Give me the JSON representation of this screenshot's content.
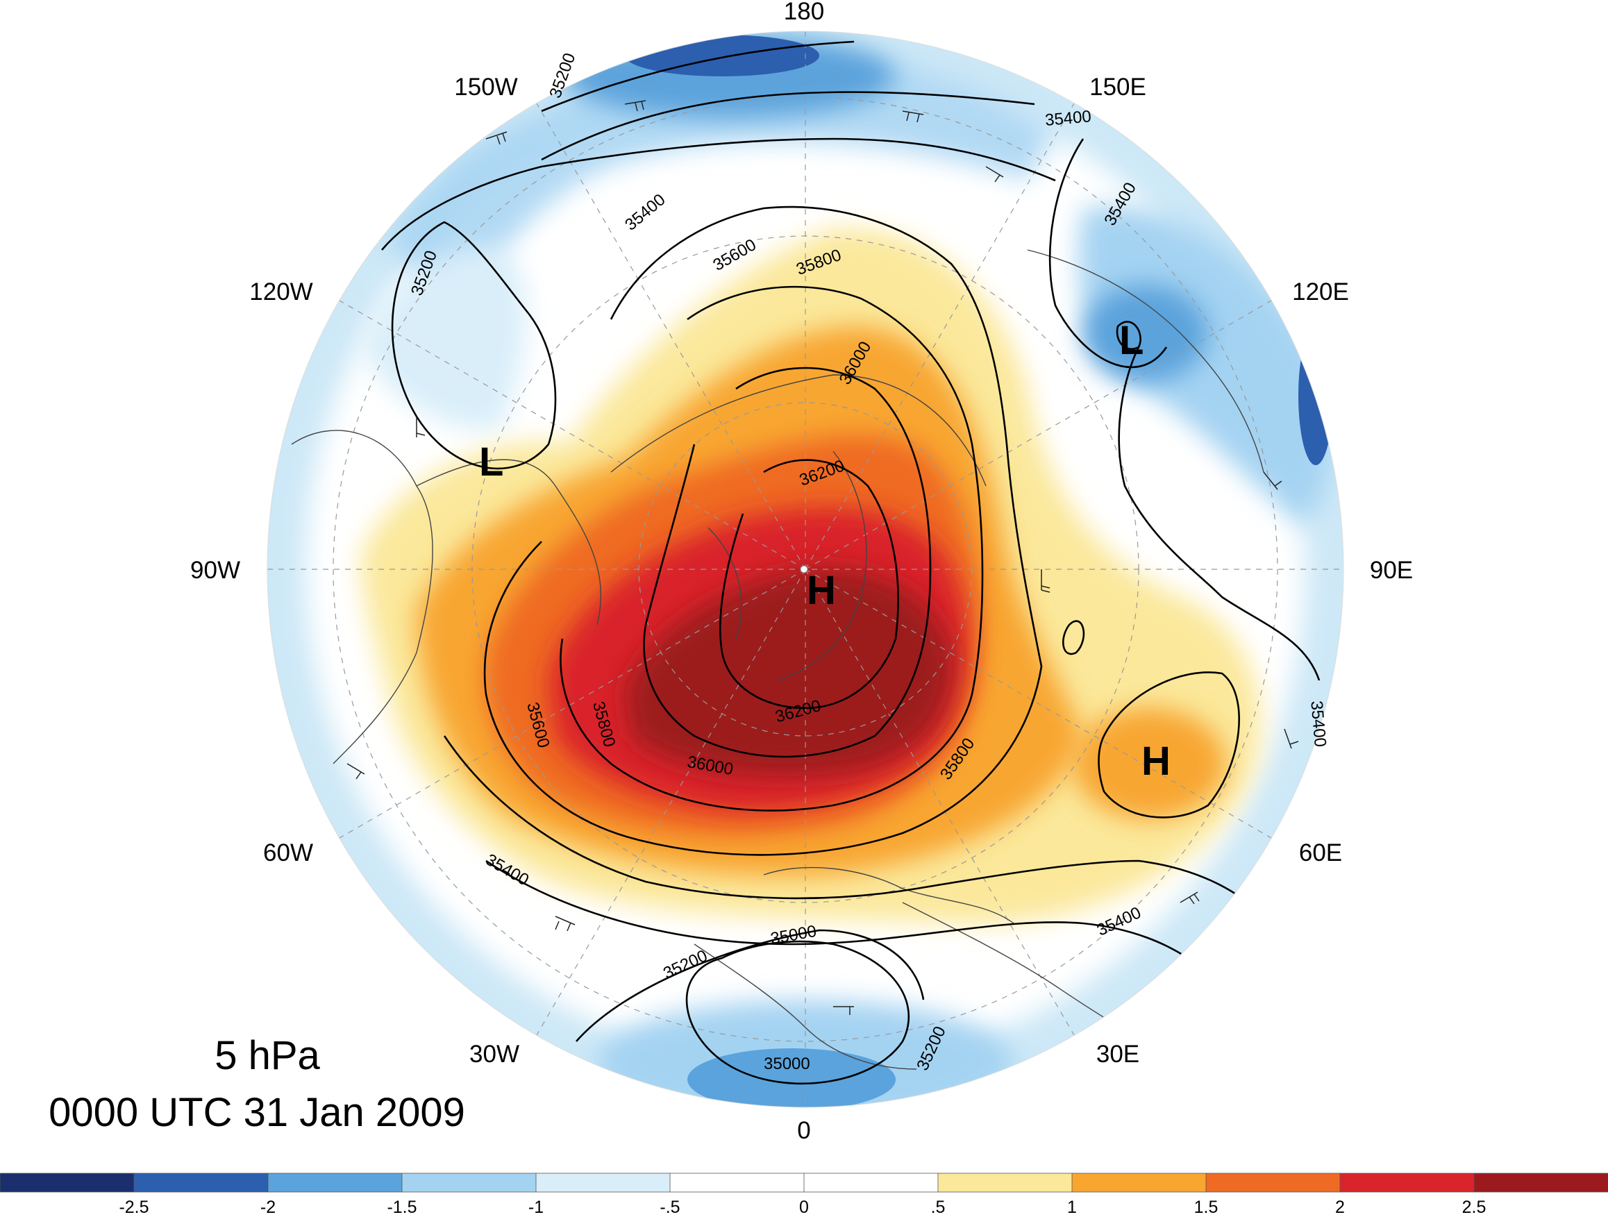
{
  "title": {
    "level": "5 hPa",
    "datetime": "0000 UTC 31 Jan 2009"
  },
  "longitude_labels": {
    "lon_180": "180",
    "lon_150W": "150W",
    "lon_150E": "150E",
    "lon_120W": "120W",
    "lon_120E": "120E",
    "lon_90W": "90W",
    "lon_90E": "90E",
    "lon_60W": "60W",
    "lon_60E": "60E",
    "lon_30W": "30W",
    "lon_30E": "30E",
    "lon_0": "0"
  },
  "pressure_centers": [
    {
      "symbol": "H",
      "region": "north pole"
    },
    {
      "symbol": "H",
      "region": "60E"
    },
    {
      "symbol": "L",
      "region": "120W"
    },
    {
      "symbol": "L",
      "region": "120E"
    }
  ],
  "contour_labels": [
    "35200",
    "35400",
    "35400",
    "35400",
    "35200",
    "35600",
    "35800",
    "36000",
    "36200",
    "35600",
    "35800",
    "36200",
    "36000",
    "35800",
    "35400",
    "35200",
    "35000",
    "35400",
    "35000",
    "35200",
    "35400"
  ],
  "colorbar": {
    "ticks": [
      "-2.5",
      "-2",
      "-1.5",
      "-1",
      "-.5",
      "0",
      ".5",
      "1",
      "1.5",
      "2",
      "2.5"
    ],
    "colors": [
      "#1b2f6e",
      "#2c5fae",
      "#5ba3dc",
      "#a4d3f2",
      "#d9eef9",
      "#ffffff",
      "#ffffff",
      "#fbe89b",
      "#f8a630",
      "#ef6b24",
      "#d9242b",
      "#9c1a1e"
    ]
  }
}
